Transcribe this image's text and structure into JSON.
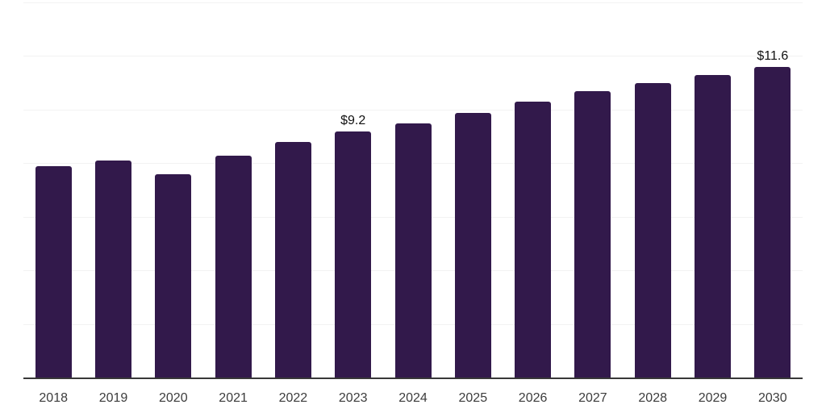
{
  "chart_data": {
    "type": "bar",
    "title": "",
    "xlabel": "",
    "ylabel": "",
    "categories": [
      "2018",
      "2019",
      "2020",
      "2021",
      "2022",
      "2023",
      "2024",
      "2025",
      "2026",
      "2027",
      "2028",
      "2029",
      "2030"
    ],
    "values": [
      7.9,
      8.1,
      7.6,
      8.3,
      8.8,
      9.2,
      9.5,
      9.9,
      10.3,
      10.7,
      11.0,
      11.3,
      11.6
    ],
    "value_labels": [
      "",
      "",
      "",
      "",
      "",
      "$9.2",
      "",
      "",
      "",
      "",
      "",
      "",
      "$11.6"
    ],
    "ylim": [
      0,
      14
    ],
    "gridline_step": 2,
    "grid": true,
    "y_tick_labels_visible": false,
    "legend": "none",
    "colors": {
      "bar": "#32194b",
      "gridline": "#f2f2f2",
      "axis_line": "#383838",
      "x_tick_label": "#3c3c3c",
      "value_label": "#111111"
    }
  }
}
